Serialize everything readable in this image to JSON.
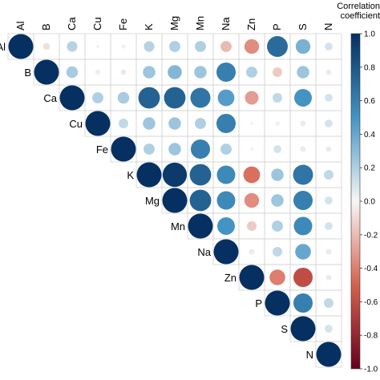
{
  "chart_data": {
    "type": "heatmap",
    "subtype": "correlation-upper-triangle-circles",
    "variables": [
      "Al",
      "B",
      "Ca",
      "Cu",
      "Fe",
      "K",
      "Mg",
      "Mn",
      "Na",
      "Zn",
      "P",
      "S",
      "N"
    ],
    "matrix": [
      [
        1.0,
        -0.08,
        0.18,
        0.02,
        -0.03,
        0.18,
        0.2,
        0.2,
        -0.2,
        -0.35,
        0.7,
        0.35,
        0.1
      ],
      [
        null,
        1.0,
        0.22,
        0.04,
        0.05,
        0.25,
        0.32,
        0.25,
        0.6,
        0.2,
        -0.15,
        0.25,
        0.05
      ],
      [
        null,
        null,
        1.0,
        0.2,
        0.22,
        0.75,
        0.75,
        0.65,
        0.45,
        -0.3,
        0.15,
        0.5,
        0.1
      ],
      [
        null,
        null,
        null,
        1.0,
        0.15,
        0.25,
        0.25,
        0.2,
        0.6,
        0.02,
        0.03,
        0.05,
        0.1
      ],
      [
        null,
        null,
        null,
        null,
        1.0,
        0.2,
        0.25,
        0.6,
        0.2,
        0.02,
        0.1,
        0.05,
        0.05
      ],
      [
        null,
        null,
        null,
        null,
        null,
        1.0,
        0.95,
        0.75,
        0.55,
        -0.45,
        0.25,
        0.65,
        0.15
      ],
      [
        null,
        null,
        null,
        null,
        null,
        null,
        1.0,
        0.75,
        0.55,
        -0.35,
        0.25,
        0.6,
        0.1
      ],
      [
        null,
        null,
        null,
        null,
        null,
        null,
        null,
        1.0,
        0.5,
        -0.15,
        0.2,
        0.55,
        0.1
      ],
      [
        null,
        null,
        null,
        null,
        null,
        null,
        null,
        null,
        1.0,
        0.05,
        0.15,
        0.4,
        0.05
      ],
      [
        null,
        null,
        null,
        null,
        null,
        null,
        null,
        null,
        null,
        1.0,
        -0.4,
        -0.6,
        0.05
      ],
      [
        null,
        null,
        null,
        null,
        null,
        null,
        null,
        null,
        null,
        null,
        1.0,
        0.6,
        0.15
      ],
      [
        null,
        null,
        null,
        null,
        null,
        null,
        null,
        null,
        null,
        null,
        null,
        1.0,
        0.1
      ],
      [
        null,
        null,
        null,
        null,
        null,
        null,
        null,
        null,
        null,
        null,
        null,
        null,
        1.0
      ]
    ],
    "legend": {
      "title_lines": [
        "Correlation",
        "coefficient"
      ],
      "ticks": [
        "1.0",
        "0.8",
        "0.6",
        "0.4",
        "0.2",
        "0.0",
        "-0.2",
        "-0.4",
        "-0.6",
        "-0.8",
        "-1.0"
      ],
      "range": [
        -1.0,
        1.0
      ],
      "placement": "right"
    },
    "colors": {
      "negative_end": "#67001f",
      "negative_mid": "#d6604d",
      "neutral": "#f7f7f7",
      "positive_mid": "#4393c3",
      "positive_end": "#053061"
    },
    "grid": true
  }
}
